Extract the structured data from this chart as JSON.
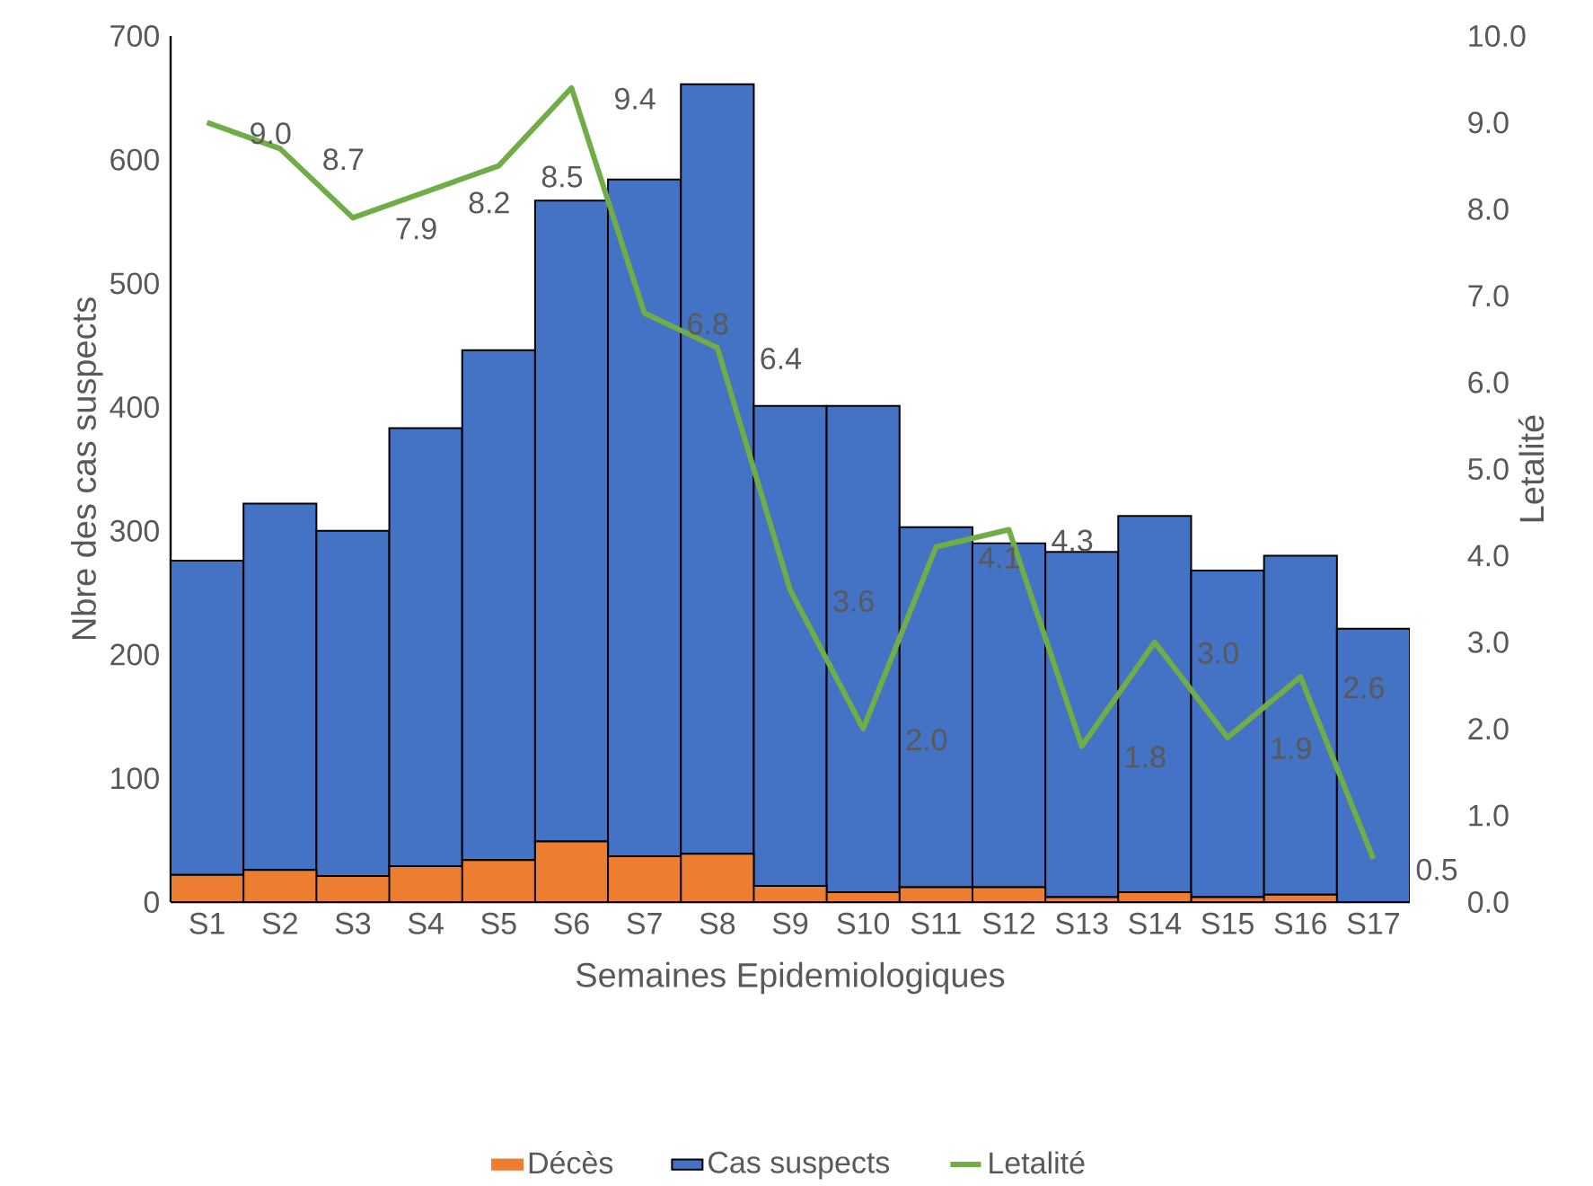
{
  "chart_data": {
    "type": "bar",
    "stacked": true,
    "xlabel": "Semaines Epidemiologiques",
    "ylabel": "Nbre des cas suspects",
    "y2label": "Letalité",
    "legend": "bottom",
    "categories": [
      "S1",
      "S2",
      "S3",
      "S4",
      "S5",
      "S6",
      "S7",
      "S8",
      "S9",
      "S10",
      "S11",
      "S12",
      "S13",
      "S14",
      "S15",
      "S16",
      "S17"
    ],
    "ylim": [
      0,
      700
    ],
    "yticks": [
      0,
      100,
      200,
      300,
      400,
      500,
      600,
      700
    ],
    "y2lim": [
      0,
      10
    ],
    "y2ticks": [
      {
        "value": 0,
        "label": "0.0"
      },
      {
        "value": 1,
        "label": "1.0"
      },
      {
        "value": 2,
        "label": "2.0"
      },
      {
        "value": 3,
        "label": "3.0"
      },
      {
        "value": 4,
        "label": "4.0"
      },
      {
        "value": 5,
        "label": "5.0"
      },
      {
        "value": 6,
        "label": "6.0"
      },
      {
        "value": 7,
        "label": "7.0"
      },
      {
        "value": 8,
        "label": "8.0"
      },
      {
        "value": 9,
        "label": "9.0"
      },
      {
        "value": 10,
        "label": "10.0"
      }
    ],
    "series": [
      {
        "name": "Décès",
        "color": "#ed7d31",
        "values": [
          22,
          26,
          21,
          29,
          34,
          49,
          37,
          39,
          13,
          8,
          12,
          12,
          4,
          8,
          4,
          6,
          null
        ]
      },
      {
        "name": "Cas suspects",
        "color": "#4472c4",
        "values": [
          254,
          296,
          279,
          354,
          412,
          518,
          547,
          622,
          388,
          393,
          291,
          278,
          279,
          304,
          264,
          274,
          221
        ]
      },
      {
        "name": "Letalité",
        "type": "line",
        "axis": "y2",
        "color": "#70ad47",
        "marker": "none",
        "values": [
          9.0,
          8.7,
          7.9,
          8.2,
          8.5,
          9.4,
          6.8,
          6.4,
          3.6,
          2.0,
          4.1,
          4.3,
          1.8,
          3.0,
          1.9,
          2.6,
          0.5
        ],
        "value_labels": [
          "9.0",
          "8.7",
          "7.9",
          "8.2",
          "8.5",
          "9.4",
          "6.8",
          "6.4",
          "3.6",
          "2.0",
          "4.1",
          "4.3",
          "1.8",
          "3.0",
          "1.9",
          "2.6",
          "0.5"
        ]
      }
    ]
  }
}
